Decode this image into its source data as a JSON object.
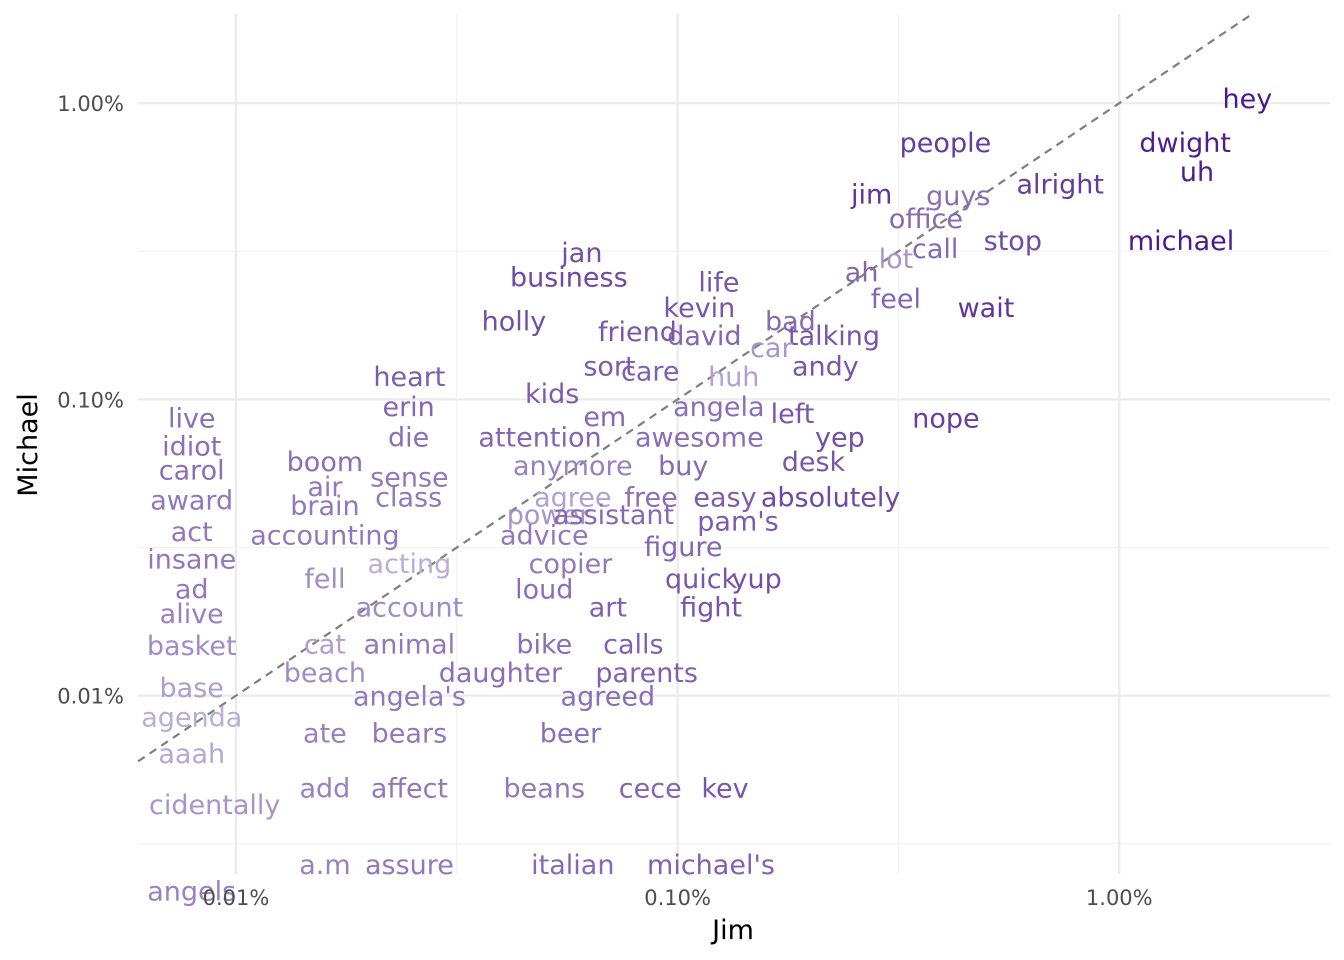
{
  "chart_data": {
    "type": "scatter",
    "title": "",
    "xlabel": "Jim",
    "ylabel": "Michael",
    "x_scale": "log10",
    "y_scale": "log10",
    "xlim": [
      6e-05,
      0.03
    ],
    "ylim": [
      2.5e-05,
      0.02
    ],
    "x_ticks": [
      {
        "value": 0.0001,
        "label": "0.01%"
      },
      {
        "value": 0.001,
        "label": "0.10%"
      },
      {
        "value": 0.01,
        "label": "1.00%"
      }
    ],
    "y_ticks": [
      {
        "value": 0.0001,
        "label": "0.01%"
      },
      {
        "value": 0.001,
        "label": "0.10%"
      },
      {
        "value": 0.01,
        "label": "1.00%"
      }
    ],
    "reference_line": "y = x",
    "grid": true,
    "color_low": "#d9d6ec",
    "color_high": "#4b1a8a",
    "points": [
      {
        "word": "hey",
        "x": 0.0195,
        "y": 0.0104,
        "shade": 1.0
      },
      {
        "word": "dwight",
        "x": 0.0141,
        "y": 0.0074,
        "shade": 0.98
      },
      {
        "word": "uh",
        "x": 0.015,
        "y": 0.0059,
        "shade": 0.98
      },
      {
        "word": "michael",
        "x": 0.0138,
        "y": 0.00345,
        "shade": 1.0
      },
      {
        "word": "people",
        "x": 0.00404,
        "y": 0.0074,
        "shade": 0.82
      },
      {
        "word": "alright",
        "x": 0.00735,
        "y": 0.00535,
        "shade": 0.82
      },
      {
        "word": "jim",
        "x": 0.00275,
        "y": 0.00495,
        "shade": 0.85
      },
      {
        "word": "guys",
        "x": 0.00432,
        "y": 0.0049,
        "shade": 0.55
      },
      {
        "word": "office",
        "x": 0.00365,
        "y": 0.0041,
        "shade": 0.58
      },
      {
        "word": "stop",
        "x": 0.00574,
        "y": 0.00345,
        "shade": 0.75
      },
      {
        "word": "call",
        "x": 0.00383,
        "y": 0.00325,
        "shade": 0.58
      },
      {
        "word": "lot",
        "x": 0.00312,
        "y": 0.003,
        "shade": 0.35
      },
      {
        "word": "ah",
        "x": 0.00261,
        "y": 0.0027,
        "shade": 0.6
      },
      {
        "word": "feel",
        "x": 0.00312,
        "y": 0.0022,
        "shade": 0.6
      },
      {
        "word": "wait",
        "x": 0.00499,
        "y": 0.00205,
        "shade": 0.85
      },
      {
        "word": "bad",
        "x": 0.0018,
        "y": 0.00185,
        "shade": 0.58
      },
      {
        "word": "talking",
        "x": 0.00226,
        "y": 0.00165,
        "shade": 0.68
      },
      {
        "word": "andy",
        "x": 0.00216,
        "y": 0.0013,
        "shade": 0.68
      },
      {
        "word": "car",
        "x": 0.00163,
        "y": 0.0015,
        "shade": 0.35
      },
      {
        "word": "life",
        "x": 0.00124,
        "y": 0.0025,
        "shade": 0.68
      },
      {
        "word": "kevin",
        "x": 0.00112,
        "y": 0.00205,
        "shade": 0.68
      },
      {
        "word": "david",
        "x": 0.00115,
        "y": 0.00165,
        "shade": 0.6
      },
      {
        "word": "huh",
        "x": 0.00134,
        "y": 0.0012,
        "shade": 0.28
      },
      {
        "word": "angela",
        "x": 0.00124,
        "y": 0.00095,
        "shade": 0.55
      },
      {
        "word": "left",
        "x": 0.00182,
        "y": 0.0009,
        "shade": 0.68
      },
      {
        "word": "nope",
        "x": 0.00405,
        "y": 0.00087,
        "shade": 0.8
      },
      {
        "word": "yep",
        "x": 0.00233,
        "y": 0.00075,
        "shade": 0.72
      },
      {
        "word": "desk",
        "x": 0.00203,
        "y": 0.00062,
        "shade": 0.68
      },
      {
        "word": "awesome",
        "x": 0.00112,
        "y": 0.00075,
        "shade": 0.55
      },
      {
        "word": "buy",
        "x": 0.00103,
        "y": 0.0006,
        "shade": 0.58
      },
      {
        "word": "easy",
        "x": 0.00128,
        "y": 0.00047,
        "shade": 0.65
      },
      {
        "word": "absolutely",
        "x": 0.00222,
        "y": 0.00047,
        "shade": 0.75
      },
      {
        "word": "jan",
        "x": 0.000607,
        "y": 0.00315,
        "shade": 0.72
      },
      {
        "word": "business",
        "x": 0.000567,
        "y": 0.0026,
        "shade": 0.75
      },
      {
        "word": "friend",
        "x": 0.000811,
        "y": 0.0017,
        "shade": 0.68
      },
      {
        "word": "sort",
        "x": 0.000701,
        "y": 0.0013,
        "shade": 0.65
      },
      {
        "word": "care",
        "x": 0.000867,
        "y": 0.00125,
        "shade": 0.62
      },
      {
        "word": "holly",
        "x": 0.000426,
        "y": 0.00185,
        "shade": 0.72
      },
      {
        "word": "kids",
        "x": 0.00052,
        "y": 0.00105,
        "shade": 0.65
      },
      {
        "word": "em",
        "x": 0.000684,
        "y": 0.00088,
        "shade": 0.58
      },
      {
        "word": "attention",
        "x": 0.000488,
        "y": 0.00075,
        "shade": 0.6
      },
      {
        "word": "anymore",
        "x": 0.000579,
        "y": 0.0006,
        "shade": 0.45
      },
      {
        "word": "agree",
        "x": 0.000579,
        "y": 0.00047,
        "shade": 0.28
      },
      {
        "word": "free",
        "x": 0.000871,
        "y": 0.00047,
        "shade": 0.55
      },
      {
        "word": "power",
        "x": 0.00051,
        "y": 0.00041,
        "shade": 0.35
      },
      {
        "word": "assistant",
        "x": 0.000716,
        "y": 0.00041,
        "shade": 0.58
      },
      {
        "word": "pam's",
        "x": 0.00137,
        "y": 0.00039,
        "shade": 0.65
      },
      {
        "word": "advice",
        "x": 0.000499,
        "y": 0.00035,
        "shade": 0.5
      },
      {
        "word": "figure",
        "x": 0.00103,
        "y": 0.00032,
        "shade": 0.6
      },
      {
        "word": "copier",
        "x": 0.000572,
        "y": 0.00028,
        "shade": 0.5
      },
      {
        "word": "loud",
        "x": 0.000499,
        "y": 0.00023,
        "shade": 0.55
      },
      {
        "word": "quick",
        "x": 0.00113,
        "y": 0.00025,
        "shade": 0.68
      },
      {
        "word": "yup",
        "x": 0.00151,
        "y": 0.00025,
        "shade": 0.72
      },
      {
        "word": "fight",
        "x": 0.00119,
        "y": 0.0002,
        "shade": 0.68
      },
      {
        "word": "art",
        "x": 0.000695,
        "y": 0.0002,
        "shade": 0.62
      },
      {
        "word": "bike",
        "x": 0.000499,
        "y": 0.00015,
        "shade": 0.55
      },
      {
        "word": "calls",
        "x": 0.000794,
        "y": 0.00015,
        "shade": 0.62
      },
      {
        "word": "parents",
        "x": 0.000851,
        "y": 0.00012,
        "shade": 0.62
      },
      {
        "word": "agreed",
        "x": 0.000695,
        "y": 0.0001,
        "shade": 0.55
      },
      {
        "word": "beer",
        "x": 0.000572,
        "y": 7.5e-05,
        "shade": 0.55
      },
      {
        "word": "beans",
        "x": 0.000499,
        "y": 4.9e-05,
        "shade": 0.5
      },
      {
        "word": "cece",
        "x": 0.000867,
        "y": 4.9e-05,
        "shade": 0.6
      },
      {
        "word": "kev",
        "x": 0.00128,
        "y": 4.9e-05,
        "shade": 0.68
      },
      {
        "word": "italian",
        "x": 0.000579,
        "y": 2.7e-05,
        "shade": 0.58
      },
      {
        "word": "michael's",
        "x": 0.00119,
        "y": 2.7e-05,
        "shade": 0.62
      },
      {
        "word": "heart",
        "x": 0.000247,
        "y": 0.0012,
        "shade": 0.65
      },
      {
        "word": "erin",
        "x": 0.000246,
        "y": 0.00095,
        "shade": 0.6
      },
      {
        "word": "die",
        "x": 0.000246,
        "y": 0.00075,
        "shade": 0.55
      },
      {
        "word": "sense",
        "x": 0.000247,
        "y": 0.00055,
        "shade": 0.5
      },
      {
        "word": "class",
        "x": 0.000246,
        "y": 0.00047,
        "shade": 0.5
      },
      {
        "word": "acting",
        "x": 0.000247,
        "y": 0.00028,
        "shade": 0.22
      },
      {
        "word": "account",
        "x": 0.000247,
        "y": 0.0002,
        "shade": 0.4
      },
      {
        "word": "animal",
        "x": 0.000247,
        "y": 0.00015,
        "shade": 0.5
      },
      {
        "word": "daughter",
        "x": 0.000397,
        "y": 0.00012,
        "shade": 0.55
      },
      {
        "word": "angela's",
        "x": 0.000247,
        "y": 0.0001,
        "shade": 0.5
      },
      {
        "word": "bears",
        "x": 0.000247,
        "y": 7.5e-05,
        "shade": 0.5
      },
      {
        "word": "affect",
        "x": 0.000247,
        "y": 4.9e-05,
        "shade": 0.5
      },
      {
        "word": "assure",
        "x": 0.000247,
        "y": 2.7e-05,
        "shade": 0.5
      },
      {
        "word": "boom",
        "x": 0.000159,
        "y": 0.00062,
        "shade": 0.55
      },
      {
        "word": "air",
        "x": 0.000159,
        "y": 0.00051,
        "shade": 0.5
      },
      {
        "word": "brain",
        "x": 0.000159,
        "y": 0.00044,
        "shade": 0.5
      },
      {
        "word": "accounting",
        "x": 0.000159,
        "y": 0.00035,
        "shade": 0.5
      },
      {
        "word": "fell",
        "x": 0.000159,
        "y": 0.00025,
        "shade": 0.4
      },
      {
        "word": "cat",
        "x": 0.000159,
        "y": 0.00015,
        "shade": 0.3
      },
      {
        "word": "beach",
        "x": 0.000159,
        "y": 0.00012,
        "shade": 0.4
      },
      {
        "word": "ate",
        "x": 0.000159,
        "y": 7.5e-05,
        "shade": 0.45
      },
      {
        "word": "add",
        "x": 0.000159,
        "y": 4.9e-05,
        "shade": 0.45
      },
      {
        "word": "a.m",
        "x": 0.000159,
        "y": 2.7e-05,
        "shade": 0.45
      },
      {
        "word": "live",
        "x": 7.94e-05,
        "y": 0.00087,
        "shade": 0.55
      },
      {
        "word": "idiot",
        "x": 7.94e-05,
        "y": 0.0007,
        "shade": 0.55
      },
      {
        "word": "carol",
        "x": 7.94e-05,
        "y": 0.00058,
        "shade": 0.55
      },
      {
        "word": "award",
        "x": 7.94e-05,
        "y": 0.00046,
        "shade": 0.5
      },
      {
        "word": "act",
        "x": 7.94e-05,
        "y": 0.00036,
        "shade": 0.5
      },
      {
        "word": "insane",
        "x": 7.94e-05,
        "y": 0.00029,
        "shade": 0.5
      },
      {
        "word": "ad",
        "x": 7.94e-05,
        "y": 0.00023,
        "shade": 0.5
      },
      {
        "word": "alive",
        "x": 7.94e-05,
        "y": 0.00019,
        "shade": 0.45
      },
      {
        "word": "basket",
        "x": 7.94e-05,
        "y": 0.000148,
        "shade": 0.4
      },
      {
        "word": "base",
        "x": 7.94e-05,
        "y": 0.000107,
        "shade": 0.3
      },
      {
        "word": "agenda",
        "x": 7.94e-05,
        "y": 8.5e-05,
        "shade": 0.22
      },
      {
        "word": "aaah",
        "x": 7.94e-05,
        "y": 6.4e-05,
        "shade": 0.25
      },
      {
        "word": "cidentally",
        "x": 8.95e-05,
        "y": 4.3e-05,
        "shade": 0.35
      },
      {
        "word": "angels",
        "x": 7.94e-05,
        "y": 2.2e-05,
        "shade": 0.45
      }
    ]
  }
}
